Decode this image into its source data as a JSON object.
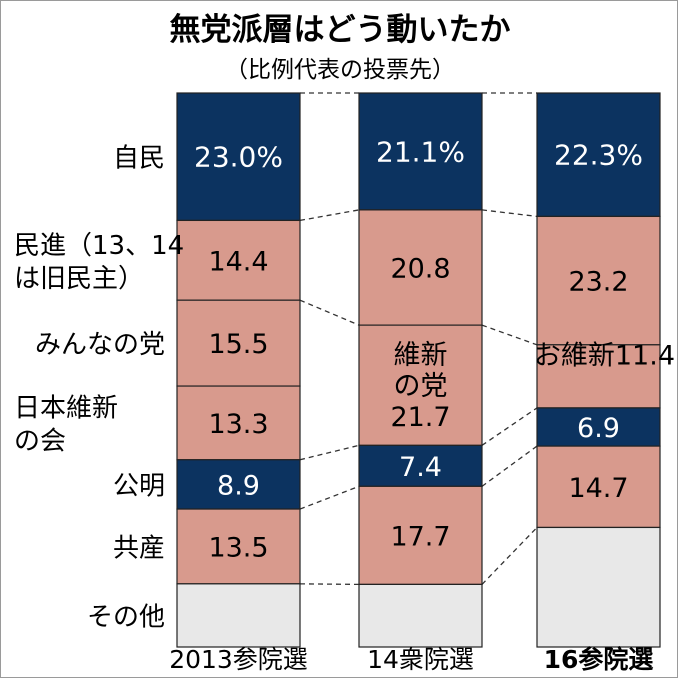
{
  "chart_data": {
    "type": "stacked-bar",
    "title": "無党派層はどう動いたか",
    "subtitle": "（比例代表の投票先）",
    "categories": [
      "2013参院選",
      "14衆院選",
      "16参院選"
    ],
    "series": [
      {
        "name": "自民",
        "label_lines": [
          "自民"
        ],
        "color": "#0c3360",
        "text_color": "#ffffff",
        "values": [
          23.0,
          21.1,
          22.3
        ],
        "value_labels": [
          "23.0%",
          "21.1%",
          "22.3%"
        ]
      },
      {
        "name": "民進（13、14は旧民主）",
        "label_lines": [
          "民進（13、14",
          "は旧民主）"
        ],
        "color": "#d89a8d",
        "text_color": "#000000",
        "values": [
          14.4,
          20.8,
          23.2
        ],
        "value_labels": [
          "14.4",
          "20.8",
          "23.2"
        ]
      },
      {
        "name": "みんなの党",
        "label_lines": [
          "みんなの党"
        ],
        "color": "#d89a8d",
        "text_color": "#000000",
        "values": [
          15.5,
          null,
          null
        ],
        "value_labels": [
          "15.5",
          "",
          ""
        ]
      },
      {
        "name": "日本維新の会",
        "label_lines": [
          "日本維新",
          "の会"
        ],
        "color": "#d89a8d",
        "text_color": "#000000",
        "values": [
          13.3,
          21.7,
          11.4
        ],
        "value_labels": [
          "13.3",
          "維新|の党|21.7",
          "お維新11.4"
        ]
      },
      {
        "name": "公明",
        "label_lines": [
          "公明"
        ],
        "color": "#0c3360",
        "text_color": "#ffffff",
        "values": [
          8.9,
          7.4,
          6.9
        ],
        "value_labels": [
          "8.9",
          "7.4",
          "6.9"
        ]
      },
      {
        "name": "共産",
        "label_lines": [
          "共産"
        ],
        "color": "#d89a8d",
        "text_color": "#000000",
        "values": [
          13.5,
          17.7,
          14.7
        ],
        "value_labels": [
          "13.5",
          "17.7",
          "14.7"
        ]
      },
      {
        "name": "その他",
        "label_lines": [
          "その他"
        ],
        "color": "#e8e8e8",
        "text_color": "#000000",
        "values": [
          11.4,
          11.3,
          21.6
        ],
        "value_labels": [
          "",
          "",
          ""
        ]
      }
    ],
    "category_bold": [
      false,
      false,
      true
    ],
    "units": "%",
    "legend": "left",
    "grid": false
  }
}
